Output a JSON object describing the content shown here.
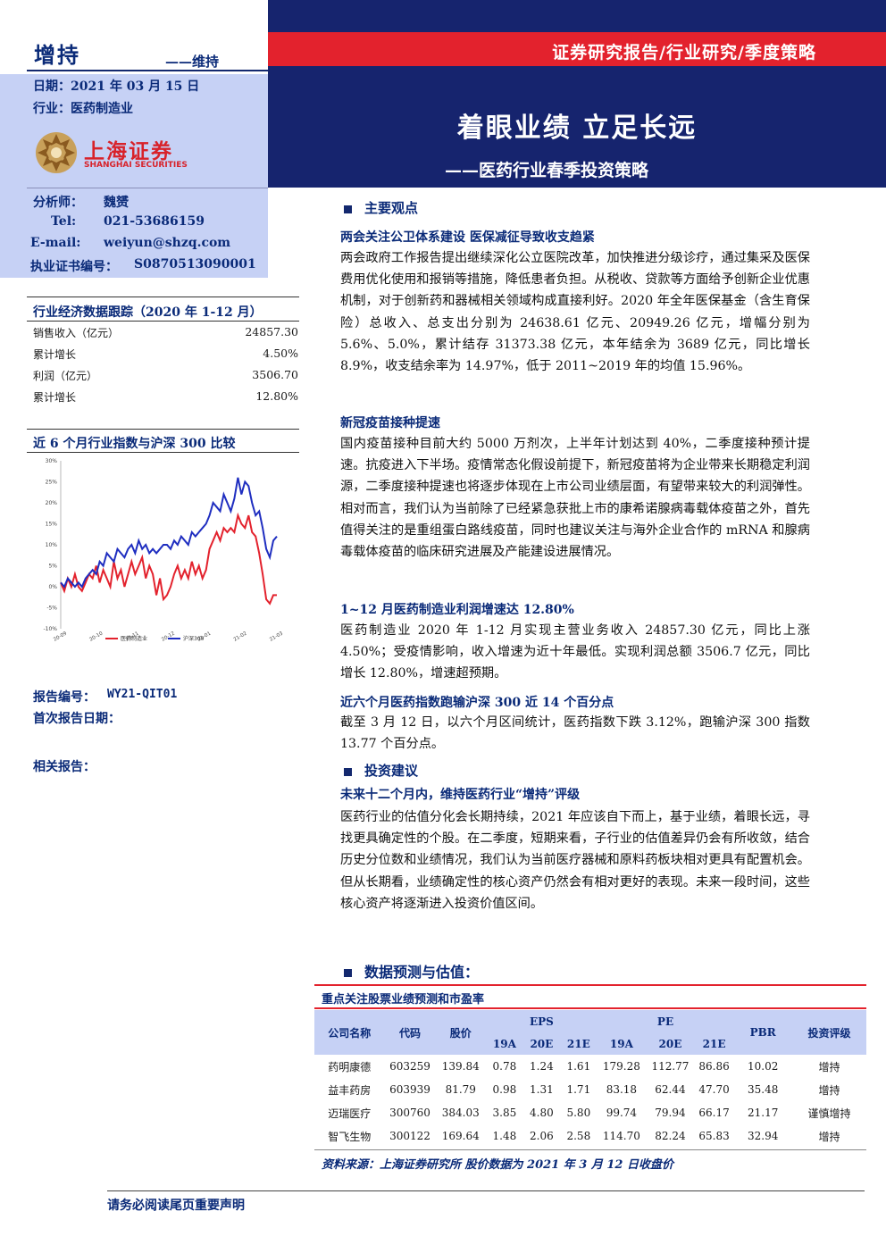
{
  "header": {
    "rating": "增持",
    "rating_change": "——维持",
    "date": "日期：2021 年 03 月 15 日",
    "industry": "行业：医药制造业",
    "report_type": "证券研究报告/行业研究/季度策略",
    "title": "着眼业绩 立足长远",
    "subtitle": "——医药行业春季投资策略",
    "logo_cn": "上海证券",
    "logo_en": "SHANGHAI SECURITIES"
  },
  "analyst": {
    "name_label": "分析师：",
    "name": "魏赟",
    "tel_label": "Tel:",
    "tel": "021-53686159",
    "email_label": "E-mail:",
    "email": "weiyun@shzq.com",
    "cert_label": "执业证书编号：",
    "cert": "S0870513090001"
  },
  "economy_table": {
    "title": "行业经济数据跟踪（2020 年 1-12 月）",
    "rows": [
      {
        "label": "销售收入（亿元）",
        "value": "24857.30"
      },
      {
        "label": "累计增长",
        "value": "4.50%"
      },
      {
        "label": "利润（亿元）",
        "value": "3506.70"
      },
      {
        "label": "累计增长",
        "value": "12.80%"
      }
    ]
  },
  "chart_title": "近 6 个月行业指数与沪深 300 比较",
  "chart_data": {
    "type": "line",
    "title": "近 6 个月行业指数与沪深 300 比较",
    "ylim": [
      -10,
      30
    ],
    "yticks": [
      "30%",
      "25%",
      "20%",
      "15%",
      "10%",
      "5%",
      "0%",
      "-5%",
      "-10%"
    ],
    "xticks": [
      "20-09",
      "20-10",
      "20-11",
      "20-12",
      "21-01",
      "21-02",
      "21-03"
    ],
    "series": [
      {
        "name": "医药制造业",
        "color": "#e3222d",
        "values": [
          1,
          -1,
          2,
          0,
          3,
          0,
          -1,
          1,
          3,
          2,
          5,
          1,
          4,
          2,
          0,
          6,
          2,
          4,
          0,
          3,
          6,
          3,
          5,
          7,
          2,
          5,
          3,
          -2,
          2,
          -3,
          -2,
          0,
          3,
          5,
          2,
          4,
          2,
          6,
          3,
          5,
          2,
          4,
          9,
          11,
          13,
          11,
          14,
          13,
          14,
          13,
          17,
          15,
          14,
          17,
          13,
          12,
          8,
          3,
          -3,
          -4,
          -2,
          -2
        ]
      },
      {
        "name": "沪深300",
        "color": "#1f2ec0",
        "values": [
          1,
          0,
          2,
          1,
          0,
          1,
          0,
          2,
          3,
          4,
          3,
          6,
          5,
          8,
          7,
          6,
          9,
          8,
          7,
          9,
          10,
          8,
          11,
          9,
          10,
          8,
          9,
          8,
          9,
          10,
          10,
          9,
          11,
          10,
          12,
          11,
          10,
          13,
          12,
          13,
          14,
          15,
          17,
          20,
          19,
          18,
          22,
          20,
          18,
          21,
          26,
          22,
          25,
          24,
          20,
          17,
          18,
          14,
          9,
          7,
          11,
          12
        ]
      }
    ],
    "legend": [
      "医药制造业",
      "沪深300"
    ]
  },
  "report_meta": {
    "no_label": "报告编号：",
    "no": "WY21-QIT01",
    "first_date_label": "首次报告日期：",
    "related_label": "相关报告："
  },
  "body": {
    "sec1": "主要观点",
    "h1": "两会关注公卫体系建设 医保减征导致收支趋紧",
    "p1": "两会政府工作报告提出继续深化公立医院改革，加快推进分级诊疗，通过集采及医保费用优化使用和报销等措施，降低患者负担。从税收、贷款等方面给予创新企业优惠机制，对于创新药和器械相关领域构成直接利好。2020 年全年医保基金（含生育保险）总收入、总支出分别为 24638.61 亿元、20949.26 亿元，增幅分别为 5.6%、5.0%，累计结存 31373.38 亿元，本年结余为 3689 亿元，同比增长 8.9%，收支结余率为 14.97%，低于 2011~2019 年的均值 15.96%。",
    "h2": "新冠疫苗接种提速",
    "p2": "国内疫苗接种目前大约 5000 万剂次，上半年计划达到 40%，二季度接种预计提速。抗疫进入下半场。疫情常态化假设前提下，新冠疫苗将为企业带来长期稳定利润源，二季度接种提速也将逐步体现在上市公司业绩层面，有望带来较大的利润弹性。相对而言，我们认为当前除了已经紧急获批上市的康希诺腺病毒载体疫苗之外，首先值得关注的是重组蛋白路线疫苗，同时也建议关注与海外企业合作的 mRNA 和腺病毒载体疫苗的临床研究进展及产能建设进展情况。",
    "h3": "1~12 月医药制造业利润增速达 12.80%",
    "p3": "医药制造业 2020 年 1-12 月实现主营业务收入 24857.30 亿元，同比上涨 4.50%；受疫情影响，收入增速为近十年最低。实现利润总额 3506.7 亿元，同比增长 12.80%，增速超预期。",
    "h4": "近六个月医药指数跑输沪深 300 近 14 个百分点",
    "p4": "截至 3 月 12 日，以六个月区间统计，医药指数下跌 3.12%，跑输沪深 300 指数 13.77 个百分点。",
    "sec2": "投资建议",
    "h5": "未来十二个月内，维持医药行业“增持”评级",
    "p5": "医药行业的估值分化会长期持续，2021 年应该自下而上，基于业绩，着眼长远，寻找更具确定性的个股。在二季度，短期来看，子行业的估值差异仍会有所收敛，结合历史分位数和业绩情况，我们认为当前医疗器械和原料药板块相对更具有配置机会。但从长期看，业绩确定性的核心资产仍然会有相对更好的表现。未来一段时间，这些核心资产将逐渐进入投资价值区间。",
    "sec3": "数据预测与估值："
  },
  "forecast_table": {
    "title": "重点关注股票业绩预测和市盈率",
    "headers": {
      "company": "公司名称",
      "code": "代码",
      "price": "股价",
      "eps": "EPS",
      "pe": "PE",
      "pbr": "PBR",
      "rating": "投资评级",
      "y1": "19A",
      "y2": "20E",
      "y3": "21E"
    },
    "rows": [
      [
        "药明康德",
        "603259",
        "139.84",
        "0.78",
        "1.24",
        "1.61",
        "179.28",
        "112.77",
        "86.86",
        "10.02",
        "增持"
      ],
      [
        "益丰药房",
        "603939",
        "81.79",
        "0.98",
        "1.31",
        "1.71",
        "83.18",
        "62.44",
        "47.70",
        "35.48",
        "增持"
      ],
      [
        "迈瑞医疗",
        "300760",
        "384.03",
        "3.85",
        "4.80",
        "5.80",
        "99.74",
        "79.94",
        "66.17",
        "21.17",
        "谨慎增持"
      ],
      [
        "智飞生物",
        "300122",
        "169.64",
        "1.48",
        "2.06",
        "2.58",
        "114.70",
        "82.24",
        "65.83",
        "32.94",
        "增持"
      ]
    ],
    "source": "资料来源：上海证券研究所 股价数据为 2021 年 3 月 12 日收盘价"
  },
  "footer": "请务必阅读尾页重要声明"
}
